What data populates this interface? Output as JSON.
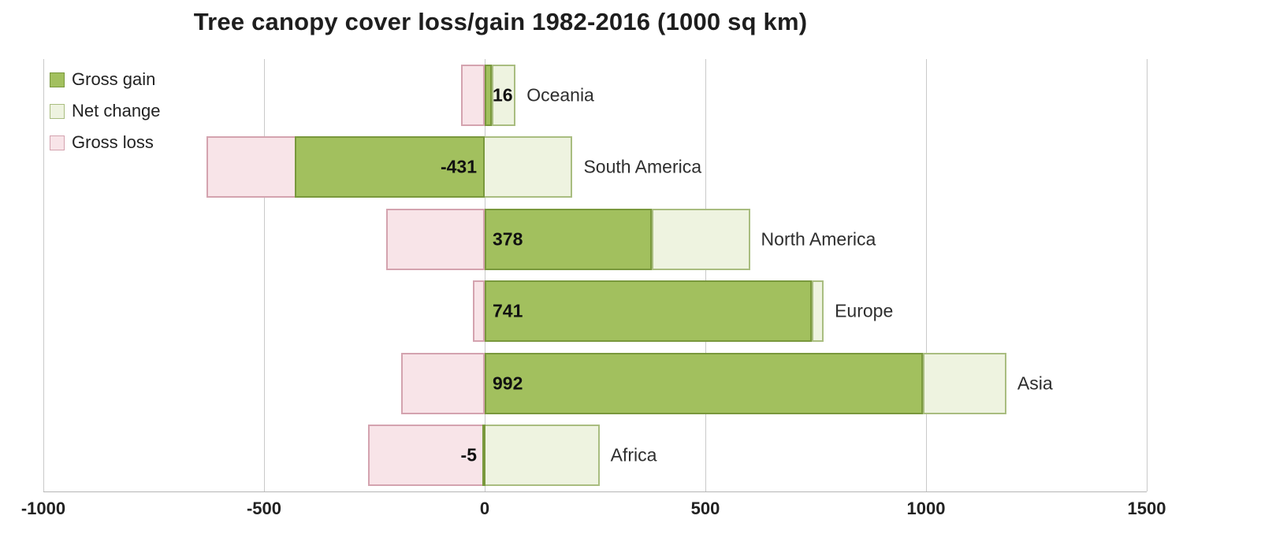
{
  "legend": [
    {
      "key": "gain",
      "label": "Gross gain"
    },
    {
      "key": "net",
      "label": "Net change"
    },
    {
      "key": "loss",
      "label": "Gross loss"
    }
  ],
  "colors": {
    "gain_fill": "#a2c05e",
    "gain_border": "#79983c",
    "net_fill": "#eef3e0",
    "net_border": "#a9bd80",
    "loss_fill": "#f8e4e8",
    "loss_border": "#d4a3af",
    "grid": "#c9c9c9",
    "axis_line": "#b5b5b5",
    "text": "#222222"
  },
  "chart_data": {
    "type": "bar",
    "orientation": "horizontal",
    "title": "Tree canopy cover loss/gain 1982-2016 (1000 sq km)",
    "xlabel": "",
    "ylabel": "",
    "units": "1000 sq km",
    "xlim": [
      -1000,
      1500
    ],
    "xticks": [
      -1000,
      -500,
      0,
      500,
      1000,
      1500
    ],
    "xtick_labels": [
      "-1000",
      "-500",
      "0",
      "500",
      "1000",
      "1500"
    ],
    "grid": true,
    "legend_position": "top-left",
    "categories": [
      "Oceania",
      "South America",
      "North America",
      "Europe",
      "Asia",
      "Africa"
    ],
    "series": [
      {
        "name": "Gross gain",
        "values": [
          70,
          199,
          601,
          768,
          1182,
          260
        ]
      },
      {
        "name": "Net change",
        "values": [
          16,
          -431,
          378,
          741,
          992,
          -5
        ]
      },
      {
        "name": "Gross loss",
        "values": [
          -54,
          -630,
          -223,
          -27,
          -190,
          -265
        ]
      }
    ],
    "value_labels": [
      "16",
      "-431",
      "378",
      "741",
      "992",
      "-5"
    ]
  }
}
